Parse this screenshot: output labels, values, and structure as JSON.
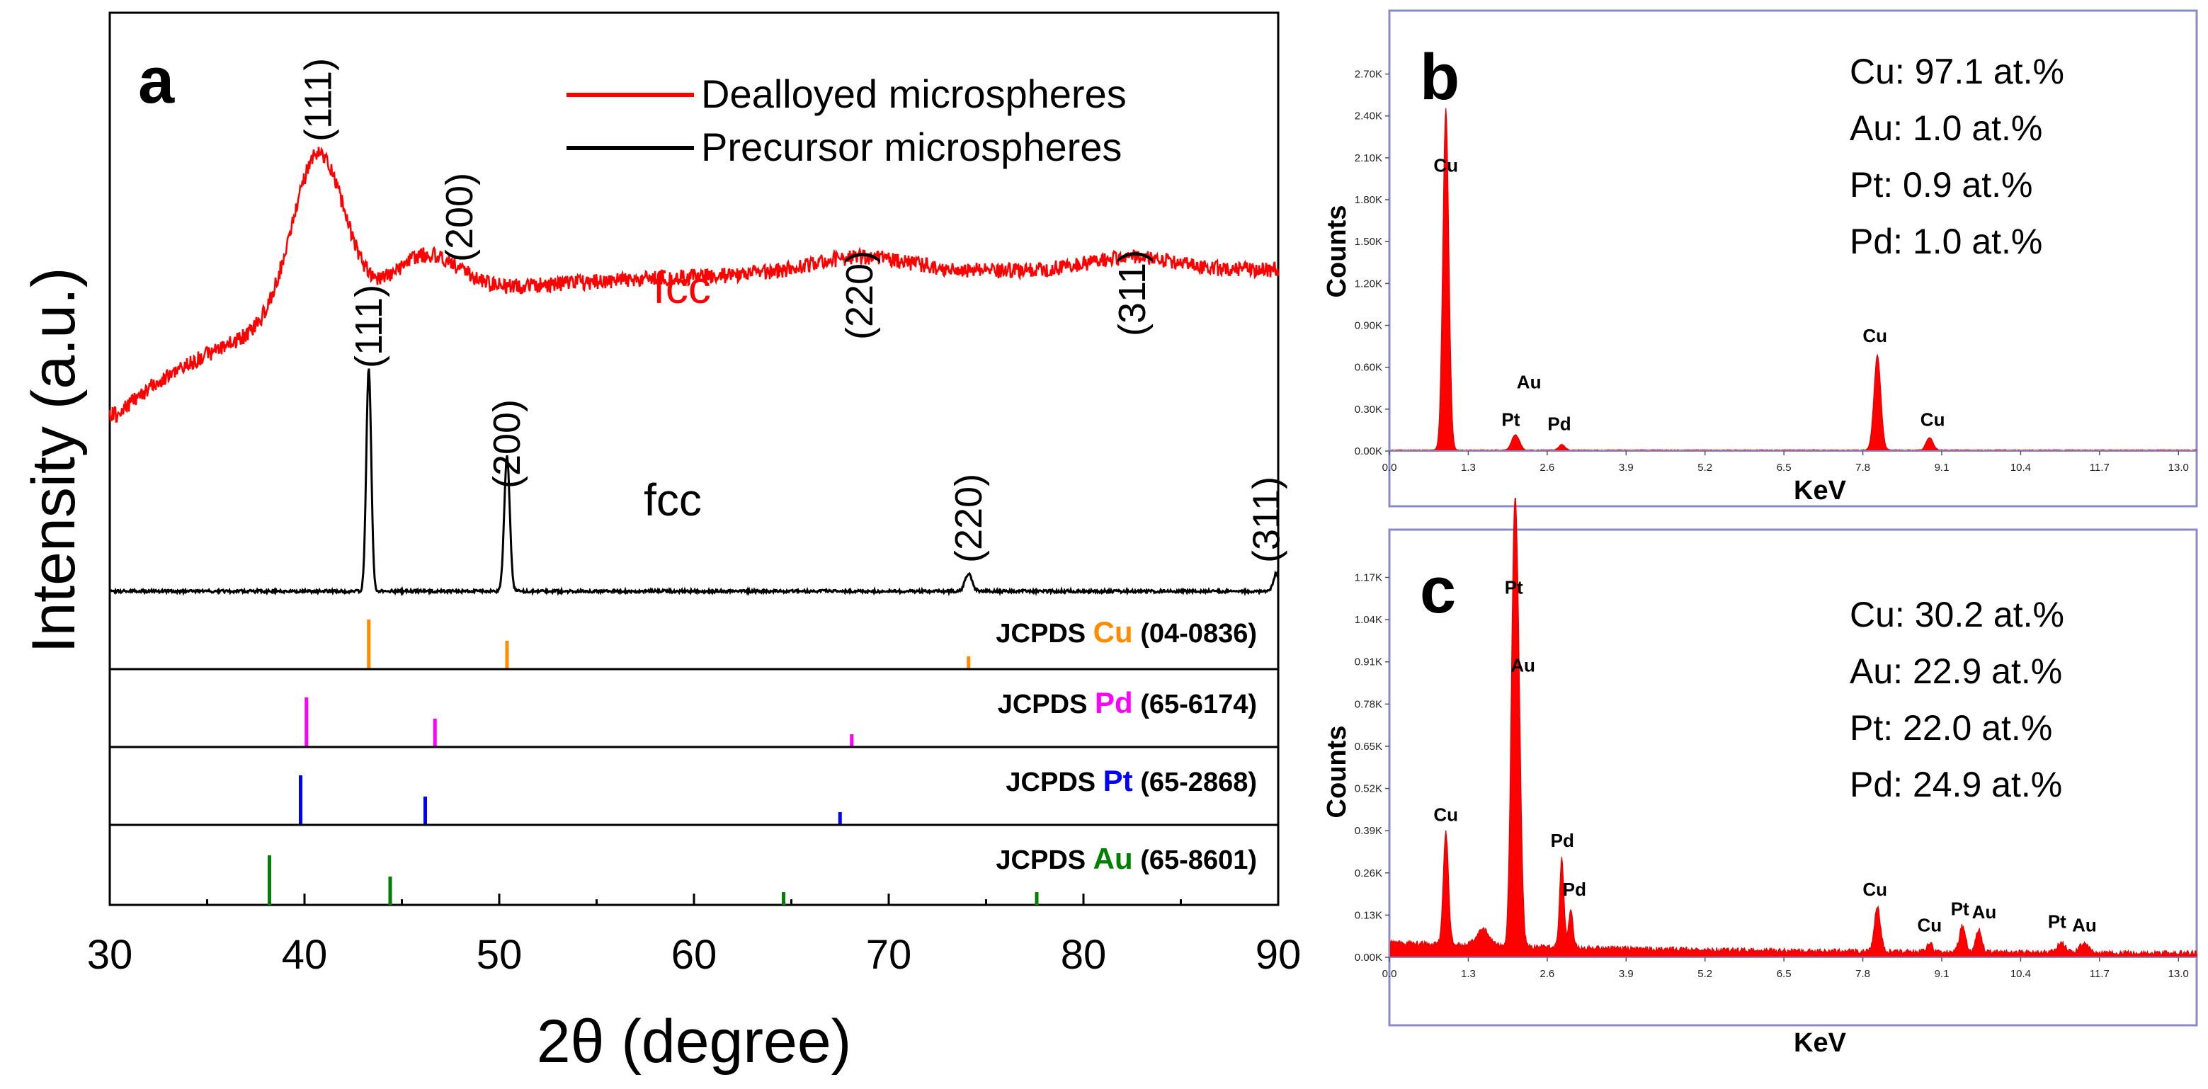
{
  "chart_data": [
    {
      "panel_letter": "a",
      "type": "line",
      "title": "",
      "xlabel": "2θ (degree)",
      "ylabel": "Intensity (a.u.)",
      "xlim": [
        30,
        90
      ],
      "xticks": [
        30,
        40,
        50,
        60,
        70,
        80,
        90
      ],
      "legend": {
        "placement": "top-right",
        "entries": [
          {
            "label": "Dealloyed microspheres",
            "color": "#ff0000"
          },
          {
            "label": "Precursor microspheres",
            "color": "#000000"
          }
        ]
      },
      "series": [
        {
          "name": "Dealloyed microspheres",
          "color": "#ff0000",
          "structure_label": "fcc",
          "peaks": [
            {
              "hkl": "(111)",
              "x": 40.7
            },
            {
              "hkl": "(200)",
              "x": 46.5
            },
            {
              "hkl": "(220)",
              "x": 68.5
            },
            {
              "hkl": "(311)",
              "x": 82.5
            }
          ]
        },
        {
          "name": "Precursor microspheres",
          "color": "#000000",
          "structure_label": "fcc",
          "peaks": [
            {
              "hkl": "(111)",
              "x": 43.3
            },
            {
              "hkl": "(200)",
              "x": 50.4
            },
            {
              "hkl": "(220)",
              "x": 74.1
            },
            {
              "hkl": "(311)",
              "x": 89.9
            }
          ]
        }
      ],
      "references": [
        {
          "prefix": "JCPDS",
          "element": "Cu",
          "code": "(04-0836)",
          "color": "#ff8c00",
          "lines": [
            43.3,
            50.4,
            74.1
          ]
        },
        {
          "prefix": "JCPDS",
          "element": "Pd",
          "code": "(65-6174)",
          "color": "#ff00ff",
          "lines": [
            40.1,
            46.7,
            68.1
          ]
        },
        {
          "prefix": "JCPDS",
          "element": "Pt",
          "code": "(65-2868)",
          "color": "#0000ff",
          "lines": [
            39.8,
            46.2,
            67.5
          ]
        },
        {
          "prefix": "JCPDS",
          "element": "Au",
          "code": "(65-8601)",
          "color": "#008000",
          "lines": [
            38.2,
            44.4,
            64.6,
            77.6
          ]
        }
      ]
    },
    {
      "panel_letter": "b",
      "type": "area",
      "xlabel": "KeV",
      "ylabel": "Counts",
      "xlim": [
        0,
        13.3
      ],
      "xticks": [
        "0.0",
        "1.3",
        "2.6",
        "3.9",
        "5.2",
        "6.5",
        "7.8",
        "9.1",
        "10.4",
        "11.7",
        "13.0"
      ],
      "ylim": [
        0,
        2.85
      ],
      "yticks": [
        "0.00K",
        "0.30K",
        "0.60K",
        "0.90K",
        "1.20K",
        "1.50K",
        "1.80K",
        "2.10K",
        "2.40K",
        "2.70K"
      ],
      "composition": [
        "Cu: 97.1 at.%",
        "Au: 1.0 at.%",
        "Pt:  0.9 at.%",
        "Pd: 1.0 at.%"
      ],
      "peaks": [
        {
          "label": "Cu",
          "x": 0.93,
          "y": 2.45,
          "w": 0.07
        },
        {
          "label": "Pt",
          "x": 2.05,
          "y": 0.08,
          "w": 0.07
        },
        {
          "label": "Au",
          "x": 2.12,
          "y": 0.06,
          "w": 0.07
        },
        {
          "label": "Pd",
          "x": 2.84,
          "y": 0.04,
          "w": 0.07
        },
        {
          "label": "Cu",
          "x": 8.04,
          "y": 0.68,
          "w": 0.08
        },
        {
          "label": "Cu",
          "x": 8.9,
          "y": 0.09,
          "w": 0.08
        }
      ],
      "peak_labels": [
        {
          "text": "Cu",
          "x": 0.93,
          "y": 2.0
        },
        {
          "text": "Au",
          "x": 2.3,
          "y": 0.45
        },
        {
          "text": "Pt",
          "x": 2.0,
          "y": 0.18
        },
        {
          "text": "Pd",
          "x": 2.8,
          "y": 0.15
        },
        {
          "text": "Cu",
          "x": 8.0,
          "y": 0.78
        },
        {
          "text": "Cu",
          "x": 8.95,
          "y": 0.18
        }
      ]
    },
    {
      "panel_letter": "c",
      "type": "area",
      "xlabel": "KeV",
      "ylabel": "Counts",
      "xlim": [
        0,
        13.3
      ],
      "xticks": [
        "0.0",
        "1.3",
        "2.6",
        "3.9",
        "5.2",
        "6.5",
        "7.8",
        "9.1",
        "10.4",
        "11.7",
        "13.0"
      ],
      "ylim": [
        0,
        1.23
      ],
      "yticks": [
        "0.00K",
        "0.13K",
        "0.26K",
        "0.39K",
        "0.52K",
        "0.65K",
        "0.78K",
        "0.91K",
        "1.04K",
        "1.17K"
      ],
      "composition": [
        "Cu: 30.2 at.%",
        "Au: 22.9 at.%",
        "Pt:  22.0 at.%",
        "Pd: 24.9 at.%"
      ],
      "peaks": [
        {
          "label": "Cu",
          "x": 0.93,
          "y": 0.35,
          "w": 0.06
        },
        {
          "label": "",
          "x": 1.55,
          "y": 0.05,
          "w": 0.15
        },
        {
          "label": "Pt",
          "x": 2.05,
          "y": 1.05,
          "w": 0.07
        },
        {
          "label": "Au",
          "x": 2.12,
          "y": 0.7,
          "w": 0.07
        },
        {
          "label": "Pd",
          "x": 2.84,
          "y": 0.28,
          "w": 0.05
        },
        {
          "label": "Pd",
          "x": 2.99,
          "y": 0.12,
          "w": 0.05
        },
        {
          "label": "Cu",
          "x": 8.04,
          "y": 0.14,
          "w": 0.07
        },
        {
          "label": "Cu",
          "x": 8.9,
          "y": 0.03,
          "w": 0.06
        },
        {
          "label": "Pt",
          "x": 9.44,
          "y": 0.08,
          "w": 0.07
        },
        {
          "label": "Au",
          "x": 9.71,
          "y": 0.07,
          "w": 0.07
        },
        {
          "label": "Pt",
          "x": 11.07,
          "y": 0.03,
          "w": 0.1
        },
        {
          "label": "Au",
          "x": 11.44,
          "y": 0.03,
          "w": 0.1
        }
      ],
      "peak_labels": [
        {
          "text": "Pt",
          "x": 2.05,
          "y": 1.12
        },
        {
          "text": "Au",
          "x": 2.2,
          "y": 0.88
        },
        {
          "text": "Cu",
          "x": 0.93,
          "y": 0.42
        },
        {
          "text": "Pd",
          "x": 2.85,
          "y": 0.34
        },
        {
          "text": "Pd",
          "x": 3.05,
          "y": 0.19
        },
        {
          "text": "Cu",
          "x": 8.0,
          "y": 0.19
        },
        {
          "text": "Cu",
          "x": 8.9,
          "y": 0.08
        },
        {
          "text": "Pt",
          "x": 9.4,
          "y": 0.13
        },
        {
          "text": "Au",
          "x": 9.8,
          "y": 0.12
        },
        {
          "text": "Pt",
          "x": 11.0,
          "y": 0.09
        },
        {
          "text": "Au",
          "x": 11.45,
          "y": 0.08
        }
      ]
    }
  ]
}
